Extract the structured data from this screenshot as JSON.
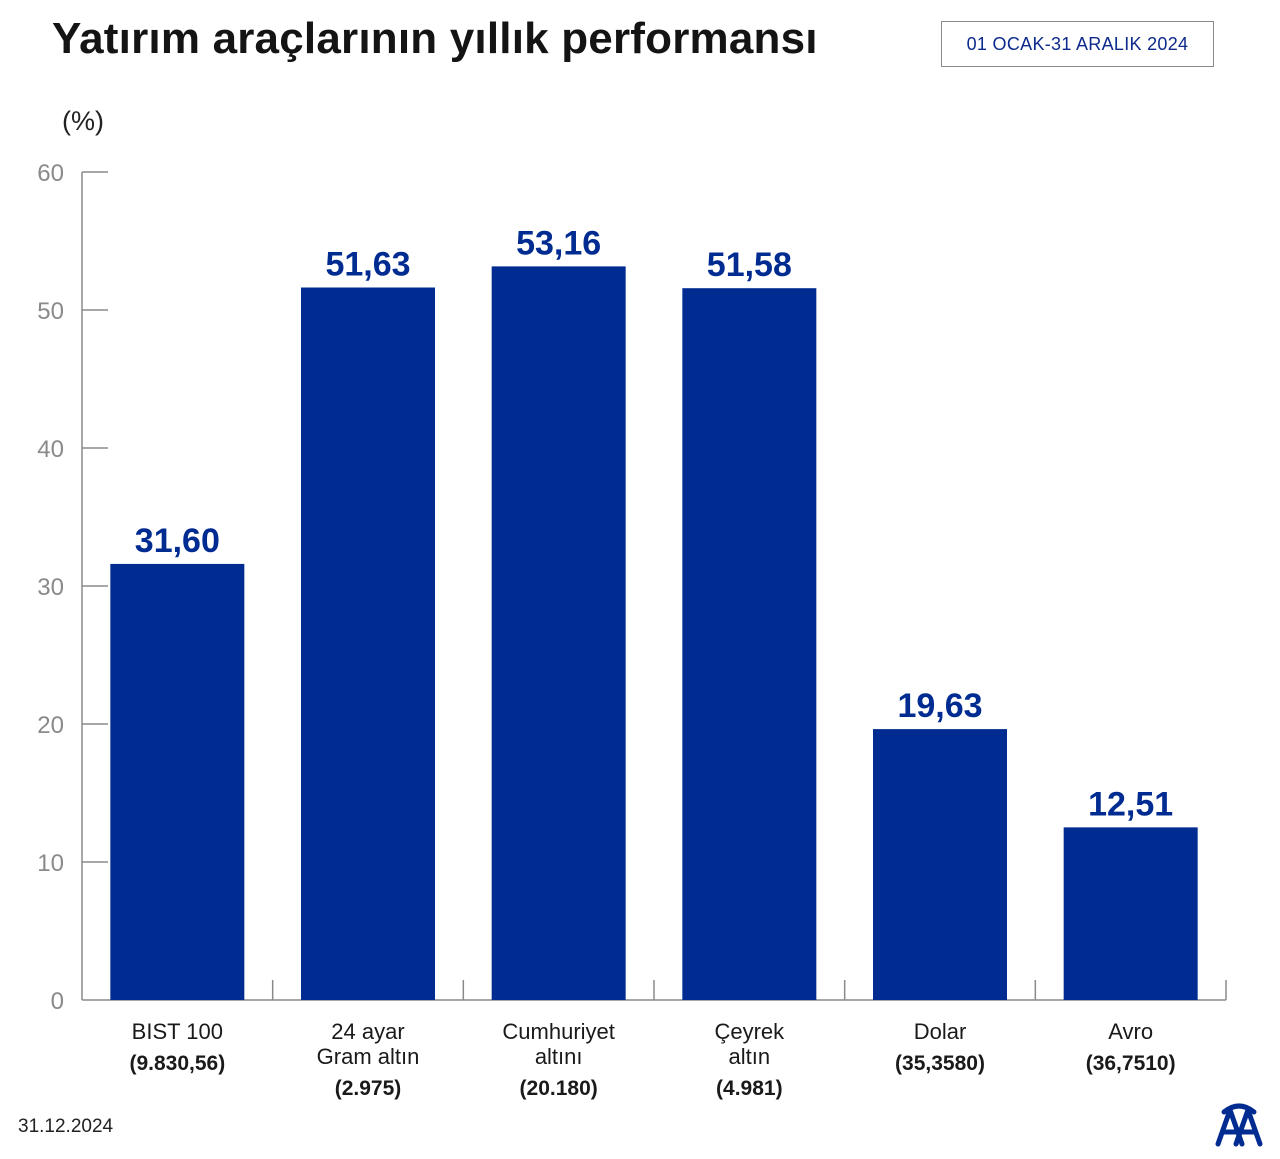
{
  "title": "Yatırım araçlarının yıllık performansı",
  "date_range": "01 OCAK-31 ARALIK 2024",
  "unit": "(%)",
  "footer_date": "31.12.2024",
  "colors": {
    "bar": "#002b91",
    "value_label": "#002b91",
    "axis": "#8a8a8a"
  },
  "chart_data": {
    "type": "bar",
    "title": "Yatırım araçlarının yıllık performansı",
    "ylabel": "(%)",
    "ylim": [
      0,
      60
    ],
    "yticks": [
      0,
      10,
      20,
      30,
      40,
      50,
      60
    ],
    "grid": false,
    "categories": [
      {
        "lines": [
          "BIST 100"
        ],
        "sub": "(9.830,56)"
      },
      {
        "lines": [
          "24 ayar",
          "Gram altın"
        ],
        "sub": "(2.975)"
      },
      {
        "lines": [
          "Cumhuriyet",
          "altını"
        ],
        "sub": "(20.180)"
      },
      {
        "lines": [
          "Çeyrek",
          "altın"
        ],
        "sub": "(4.981)"
      },
      {
        "lines": [
          "Dolar"
        ],
        "sub": "(35,3580)"
      },
      {
        "lines": [
          "Avro"
        ],
        "sub": "(36,7510)"
      }
    ],
    "values": [
      31.6,
      51.63,
      53.16,
      51.58,
      19.63,
      12.51
    ],
    "value_labels": [
      "31,60",
      "51,63",
      "53,16",
      "51,58",
      "19,63",
      "12,51"
    ]
  }
}
